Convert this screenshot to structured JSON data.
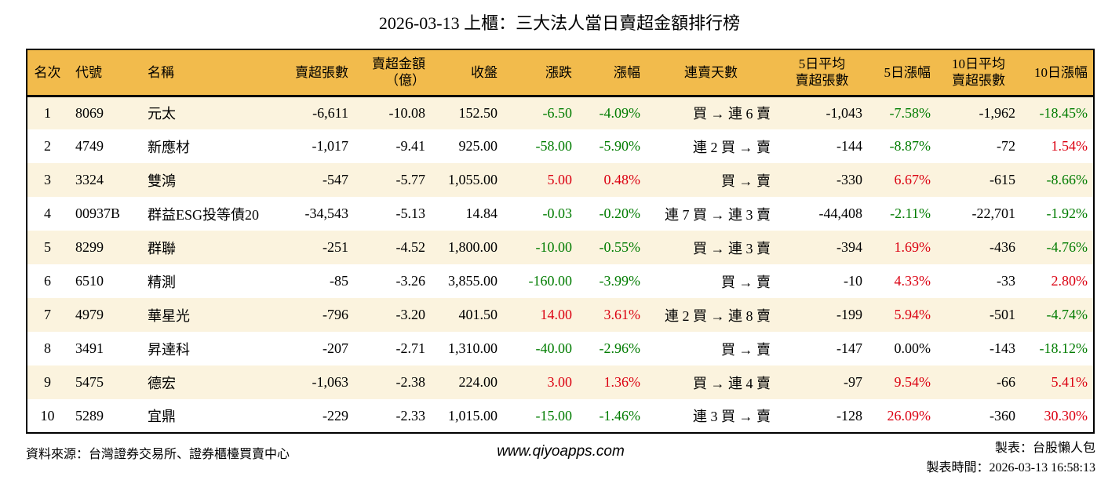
{
  "title": "2026-03-13 上櫃：三大法人當日賣超金額排行榜",
  "colors": {
    "header-bg": "#F2BB4C",
    "row-alt": "#FBF3DE",
    "up": "#DB0011",
    "down": "#007C00",
    "border": "#000000"
  },
  "chart_data": {
    "type": "table",
    "title": "2026-03-13 上櫃：三大法人當日賣超金額排行榜",
    "columns": [
      {
        "key": "rank",
        "lines": [
          "名次"
        ]
      },
      {
        "key": "code",
        "lines": [
          "代號"
        ]
      },
      {
        "key": "name",
        "lines": [
          "名稱"
        ]
      },
      {
        "key": "sell-volume",
        "lines": [
          "賣超張數"
        ]
      },
      {
        "key": "sell-amount",
        "lines": [
          "賣超金額",
          "（億）"
        ]
      },
      {
        "key": "close",
        "lines": [
          "收盤"
        ]
      },
      {
        "key": "change",
        "lines": [
          "漲跌"
        ]
      },
      {
        "key": "change-pct",
        "lines": [
          "漲幅"
        ]
      },
      {
        "key": "streak",
        "lines": [
          "連賣天數"
        ]
      },
      {
        "key": "avg5",
        "lines": [
          "5日平均",
          "賣超張數"
        ]
      },
      {
        "key": "pct5",
        "lines": [
          "5日漲幅"
        ]
      },
      {
        "key": "avg10",
        "lines": [
          "10日平均",
          "賣超張數"
        ]
      },
      {
        "key": "pct10",
        "lines": [
          "10日漲幅"
        ]
      }
    ],
    "rows": [
      [
        "1",
        "8069",
        "元太",
        "-6,611",
        "-10.08",
        "152.50",
        "-6.50",
        "-4.09%",
        "買 → 連 6 賣",
        "-1,043",
        "-7.58%",
        "-1,962",
        "-18.45%"
      ],
      [
        "2",
        "4749",
        "新應材",
        "-1,017",
        "-9.41",
        "925.00",
        "-58.00",
        "-5.90%",
        "連 2 買 → 賣",
        "-144",
        "-8.87%",
        "-72",
        "1.54%"
      ],
      [
        "3",
        "3324",
        "雙鴻",
        "-547",
        "-5.77",
        "1,055.00",
        "5.00",
        "0.48%",
        "買 → 賣",
        "-330",
        "6.67%",
        "-615",
        "-8.66%"
      ],
      [
        "4",
        "00937B",
        "群益ESG投等債20",
        "-34,543",
        "-5.13",
        "14.84",
        "-0.03",
        "-0.20%",
        "連 7 買 → 連 3 賣",
        "-44,408",
        "-2.11%",
        "-22,701",
        "-1.92%"
      ],
      [
        "5",
        "8299",
        "群聯",
        "-251",
        "-4.52",
        "1,800.00",
        "-10.00",
        "-0.55%",
        "買 → 連 3 賣",
        "-394",
        "1.69%",
        "-436",
        "-4.76%"
      ],
      [
        "6",
        "6510",
        "精測",
        "-85",
        "-3.26",
        "3,855.00",
        "-160.00",
        "-3.99%",
        "買 → 賣",
        "-10",
        "4.33%",
        "-33",
        "2.80%"
      ],
      [
        "7",
        "4979",
        "華星光",
        "-796",
        "-3.20",
        "401.50",
        "14.00",
        "3.61%",
        "連 2 買 → 連 8 賣",
        "-199",
        "5.94%",
        "-501",
        "-4.74%"
      ],
      [
        "8",
        "3491",
        "昇達科",
        "-207",
        "-2.71",
        "1,310.00",
        "-40.00",
        "-2.96%",
        "買 → 賣",
        "-147",
        "0.00%",
        "-143",
        "-18.12%"
      ],
      [
        "9",
        "5475",
        "德宏",
        "-1,063",
        "-2.38",
        "224.00",
        "3.00",
        "1.36%",
        "買 → 連 4 賣",
        "-97",
        "9.54%",
        "-66",
        "5.41%"
      ],
      [
        "10",
        "5289",
        "宜鼎",
        "-229",
        "-2.33",
        "1,015.00",
        "-15.00",
        "-1.46%",
        "連 3 買 → 賣",
        "-128",
        "26.09%",
        "-360",
        "30.30%"
      ]
    ]
  },
  "footer": {
    "source": "資料來源：台灣證券交易所、證券櫃檯買賣中心",
    "website": "www.qiyoapps.com",
    "author": "製表：台股懶人包",
    "generated": "製表時間：2026-03-13 16:58:13"
  }
}
